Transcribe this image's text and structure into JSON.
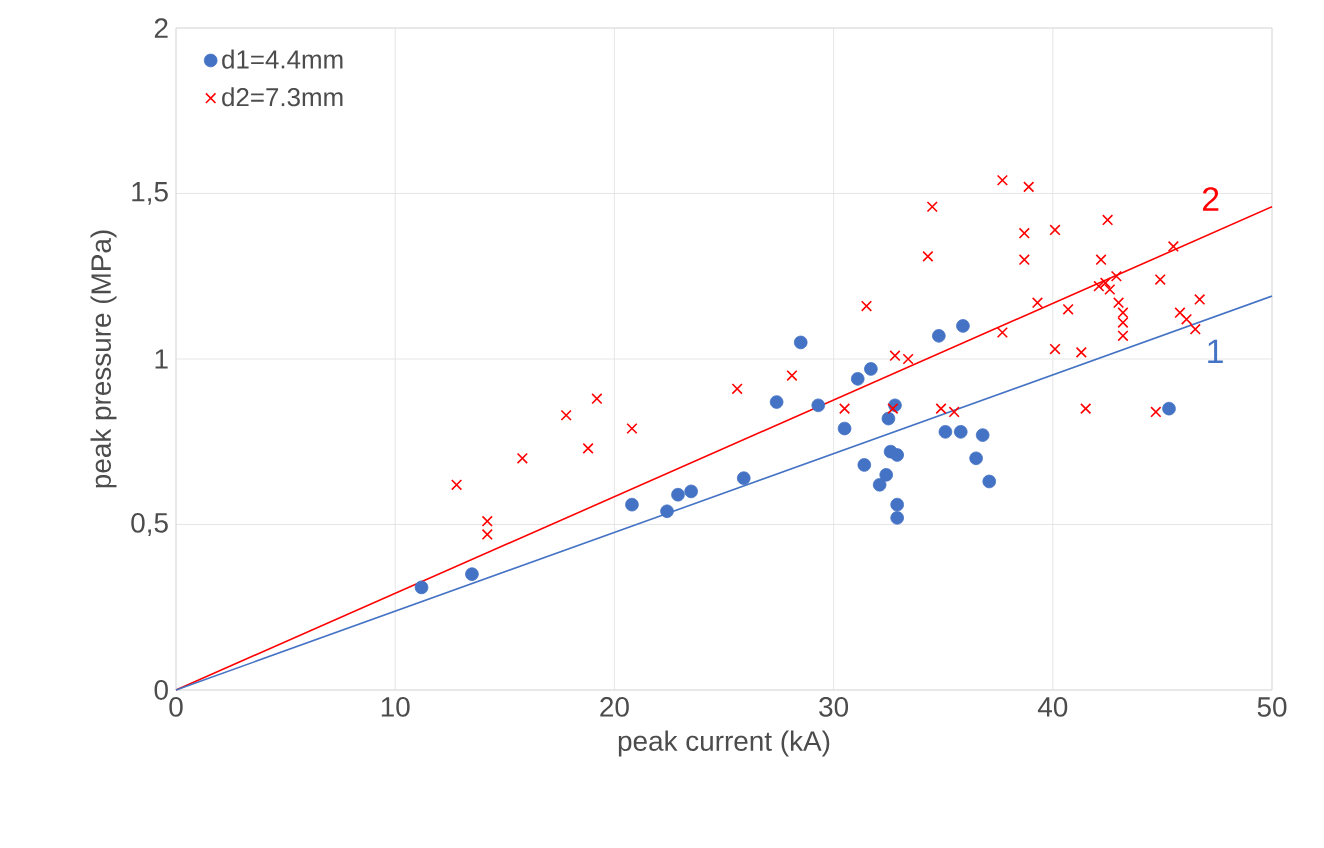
{
  "chart_data": {
    "type": "scatter",
    "xlabel": "peak current (kA)",
    "ylabel": "peak pressure (MPa)",
    "xlim": [
      0,
      50
    ],
    "ylim": [
      0,
      2
    ],
    "xticks": [
      0,
      10,
      20,
      30,
      40,
      50
    ],
    "yticks": [
      0,
      {
        "value": 0.5,
        "label": "0,5"
      },
      1,
      {
        "value": 1.5,
        "label": "1,5"
      },
      2
    ],
    "grid": true,
    "legend": "top left",
    "annotations": [
      {
        "text": "2",
        "x": 47.2,
        "y": 1.378
      },
      {
        "text": "1",
        "x": 47.4,
        "y": 1.128
      }
    ],
    "series": [
      {
        "name": "d1=4.4mm",
        "marker": "circle",
        "color": "#4472c4",
        "x": [
          11.2,
          13.5,
          20.8,
          22.4,
          22.9,
          23.5,
          25.9,
          27.4,
          28.5,
          29.3,
          30.5,
          31.1,
          31.4,
          31.7,
          32.1,
          32.4,
          32.5,
          32.6,
          32.8,
          32.9,
          32.9,
          32.9,
          34.8,
          35.1,
          35.9,
          35.8,
          36.5,
          36.8,
          37.1,
          45.3
        ],
        "values": [
          0.31,
          0.35,
          0.56,
          0.54,
          0.59,
          0.6,
          0.64,
          0.87,
          1.05,
          0.86,
          0.79,
          0.94,
          0.68,
          0.97,
          0.62,
          0.65,
          0.82,
          0.72,
          0.86,
          0.71,
          0.56,
          0.52,
          1.07,
          0.78,
          1.1,
          0.78,
          0.7,
          0.77,
          0.63,
          0.85
        ]
      },
      {
        "name": "d2=7.3mm",
        "marker": "cross",
        "color": "#ff0000",
        "x": [
          12.8,
          14.2,
          14.2,
          15.8,
          17.8,
          18.8,
          19.2,
          20.8,
          25.6,
          28.1,
          30.5,
          31.5,
          32.8,
          33.4,
          32.7,
          34.5,
          34.3,
          34.9,
          35.5,
          37.7,
          38.9,
          38.7,
          38.7,
          40.1,
          37.7,
          39.3,
          40.1,
          40.7,
          41.3,
          41.5,
          42.5,
          42.2,
          42.1,
          42.4,
          42.6,
          42.9,
          43.0,
          43.2,
          43.2,
          43.2,
          44.9,
          45.5,
          44.7,
          45.8,
          46.1,
          46.7,
          46.5
        ],
        "values": [
          0.62,
          0.51,
          0.47,
          0.7,
          0.83,
          0.73,
          0.88,
          0.79,
          0.91,
          0.95,
          0.85,
          1.16,
          1.01,
          1.0,
          0.85,
          1.46,
          1.31,
          0.85,
          0.84,
          1.54,
          1.52,
          1.38,
          1.3,
          1.39,
          1.08,
          1.17,
          1.03,
          1.15,
          1.02,
          0.85,
          1.42,
          1.3,
          1.22,
          1.23,
          1.21,
          1.25,
          1.17,
          1.14,
          1.11,
          1.07,
          1.24,
          1.34,
          0.84,
          1.14,
          1.12,
          1.18,
          1.09
        ]
      },
      {
        "type": "line",
        "marker": "none",
        "line_style": "solid",
        "color": "#ff0000",
        "x": [
          0,
          50
        ],
        "values": [
          0,
          1.46
        ]
      },
      {
        "type": "line",
        "marker": "none",
        "line_style": "solid",
        "color": "#4472c4",
        "x": [
          0,
          50
        ],
        "values": [
          0,
          1.19
        ]
      }
    ]
  }
}
